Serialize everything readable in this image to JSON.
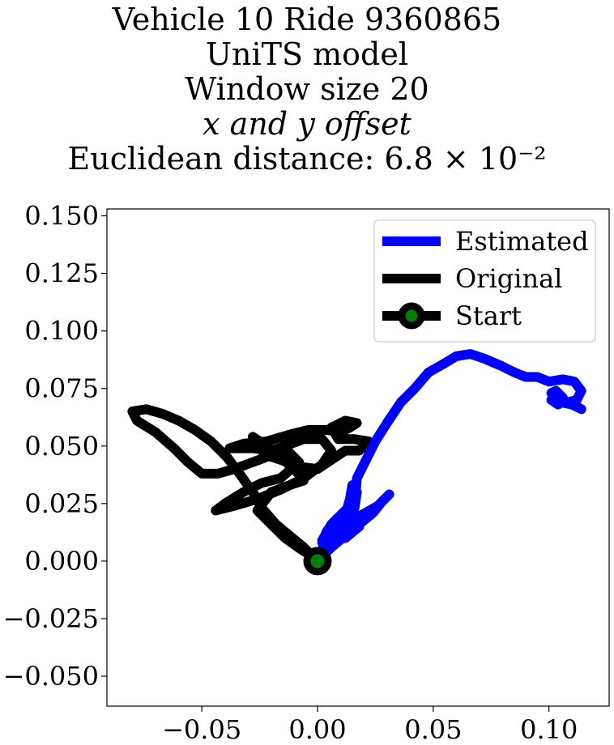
{
  "chart_data": {
    "type": "line",
    "title_lines": [
      "Vehicle 10 Ride 9360865",
      "UniTS model",
      "Window size 20",
      "x and y offset",
      "Euclidean distance: 6.8 × 10⁻²"
    ],
    "xlabel": "",
    "ylabel": "",
    "xlim": [
      -0.091,
      0.126
    ],
    "ylim": [
      -0.063,
      0.153
    ],
    "x_ticks": [
      -0.05,
      0.0,
      0.05,
      0.1
    ],
    "x_tick_labels": [
      "−0.05",
      "0.00",
      "0.05",
      "0.10"
    ],
    "y_ticks": [
      -0.05,
      -0.025,
      0.0,
      0.025,
      0.05,
      0.075,
      0.1,
      0.125,
      0.15
    ],
    "y_tick_labels": [
      "−0.050",
      "−0.025",
      "0.000",
      "0.025",
      "0.050",
      "0.075",
      "0.100",
      "0.125",
      "0.150"
    ],
    "grid": false,
    "legend_position": "top-right",
    "series": [
      {
        "name": "Estimated",
        "color": "#0000ff",
        "points": [
          [
            0.0,
            0.0
          ],
          [
            0.006,
            0.006
          ],
          [
            0.012,
            0.011
          ],
          [
            0.018,
            0.016
          ],
          [
            0.024,
            0.021
          ],
          [
            0.028,
            0.026
          ],
          [
            0.031,
            0.029
          ],
          [
            0.026,
            0.024
          ],
          [
            0.019,
            0.02
          ],
          [
            0.013,
            0.017
          ],
          [
            0.008,
            0.014
          ],
          [
            0.004,
            0.011
          ],
          [
            0.002,
            0.008
          ],
          [
            0.004,
            0.013
          ],
          [
            0.009,
            0.019
          ],
          [
            0.014,
            0.024
          ],
          [
            0.016,
            0.019
          ],
          [
            0.012,
            0.014
          ],
          [
            0.006,
            0.012
          ],
          [
            0.002,
            0.009
          ],
          [
            0.006,
            0.016
          ],
          [
            0.012,
            0.022
          ],
          [
            0.017,
            0.019
          ],
          [
            0.013,
            0.013
          ],
          [
            0.007,
            0.01
          ],
          [
            0.003,
            0.007
          ],
          [
            0.006,
            0.012
          ],
          [
            0.011,
            0.017
          ],
          [
            0.018,
            0.015
          ],
          [
            0.012,
            0.01
          ],
          [
            0.006,
            0.01
          ],
          [
            0.002,
            0.005
          ],
          [
            0.008,
            0.014
          ],
          [
            0.012,
            0.02
          ],
          [
            0.014,
            0.027
          ],
          [
            0.015,
            0.033
          ],
          [
            0.017,
            0.03
          ],
          [
            0.016,
            0.023
          ],
          [
            0.017,
            0.036
          ],
          [
            0.021,
            0.044
          ],
          [
            0.025,
            0.052
          ],
          [
            0.03,
            0.06
          ],
          [
            0.036,
            0.069
          ],
          [
            0.042,
            0.075
          ],
          [
            0.048,
            0.082
          ],
          [
            0.055,
            0.086
          ],
          [
            0.06,
            0.089
          ],
          [
            0.066,
            0.09
          ],
          [
            0.072,
            0.088
          ],
          [
            0.079,
            0.085
          ],
          [
            0.085,
            0.082
          ],
          [
            0.09,
            0.08
          ],
          [
            0.095,
            0.08
          ],
          [
            0.1,
            0.078
          ],
          [
            0.106,
            0.079
          ],
          [
            0.111,
            0.078
          ],
          [
            0.114,
            0.074
          ],
          [
            0.112,
            0.07
          ],
          [
            0.108,
            0.069
          ],
          [
            0.104,
            0.071
          ],
          [
            0.101,
            0.073
          ],
          [
            0.103,
            0.074
          ],
          [
            0.106,
            0.071
          ],
          [
            0.104,
            0.068
          ],
          [
            0.101,
            0.07
          ],
          [
            0.105,
            0.069
          ],
          [
            0.11,
            0.068
          ],
          [
            0.114,
            0.066
          ]
        ]
      },
      {
        "name": "Original",
        "color": "#000000",
        "points": [
          [
            0.0,
            0.0
          ],
          [
            -0.006,
            0.006
          ],
          [
            -0.012,
            0.011
          ],
          [
            -0.018,
            0.016
          ],
          [
            -0.024,
            0.023
          ],
          [
            -0.028,
            0.03
          ],
          [
            -0.033,
            0.037
          ],
          [
            -0.039,
            0.045
          ],
          [
            -0.046,
            0.052
          ],
          [
            -0.053,
            0.057
          ],
          [
            -0.06,
            0.061
          ],
          [
            -0.067,
            0.064
          ],
          [
            -0.074,
            0.066
          ],
          [
            -0.08,
            0.065
          ],
          [
            -0.078,
            0.061
          ],
          [
            -0.07,
            0.056
          ],
          [
            -0.062,
            0.049
          ],
          [
            -0.056,
            0.043
          ],
          [
            -0.05,
            0.038
          ],
          [
            -0.043,
            0.038
          ],
          [
            -0.036,
            0.04
          ],
          [
            -0.028,
            0.043
          ],
          [
            -0.02,
            0.046
          ],
          [
            -0.013,
            0.048
          ],
          [
            -0.008,
            0.043
          ],
          [
            -0.016,
            0.036
          ],
          [
            -0.024,
            0.034
          ],
          [
            -0.032,
            0.03
          ],
          [
            -0.04,
            0.025
          ],
          [
            -0.044,
            0.022
          ],
          [
            -0.036,
            0.024
          ],
          [
            -0.026,
            0.027
          ],
          [
            -0.016,
            0.031
          ],
          [
            -0.006,
            0.036
          ],
          [
            0.002,
            0.042
          ],
          [
            0.006,
            0.048
          ],
          [
            0.002,
            0.053
          ],
          [
            -0.006,
            0.053
          ],
          [
            -0.014,
            0.05
          ],
          [
            -0.02,
            0.048
          ],
          [
            -0.028,
            0.049
          ],
          [
            -0.038,
            0.049
          ],
          [
            -0.032,
            0.051
          ],
          [
            -0.022,
            0.052
          ],
          [
            -0.012,
            0.055
          ],
          [
            -0.004,
            0.057
          ],
          [
            0.004,
            0.057
          ],
          [
            0.01,
            0.056
          ],
          [
            0.014,
            0.058
          ],
          [
            0.017,
            0.06
          ],
          [
            0.012,
            0.061
          ],
          [
            0.006,
            0.058
          ],
          [
            0.009,
            0.053
          ],
          [
            0.016,
            0.053
          ],
          [
            0.022,
            0.052
          ],
          [
            0.018,
            0.048
          ],
          [
            0.012,
            0.048
          ],
          [
            0.006,
            0.044
          ],
          [
            0.0,
            0.04
          ],
          [
            -0.008,
            0.041
          ],
          [
            -0.016,
            0.044
          ],
          [
            -0.022,
            0.046
          ],
          [
            -0.026,
            0.05
          ],
          [
            -0.028,
            0.054
          ],
          [
            -0.022,
            0.05
          ],
          [
            -0.016,
            0.045
          ],
          [
            -0.01,
            0.04
          ],
          [
            -0.006,
            0.035
          ],
          [
            -0.012,
            0.033
          ],
          [
            -0.02,
            0.03
          ],
          [
            -0.026,
            0.022
          ],
          [
            -0.021,
            0.017
          ],
          [
            -0.014,
            0.01
          ],
          [
            -0.007,
            0.005
          ],
          [
            -0.002,
            0.002
          ]
        ]
      }
    ],
    "start_marker": {
      "name": "Start",
      "point": [
        0.0,
        0.0
      ],
      "edge_color": "#000000",
      "face_color": "#008000"
    }
  }
}
